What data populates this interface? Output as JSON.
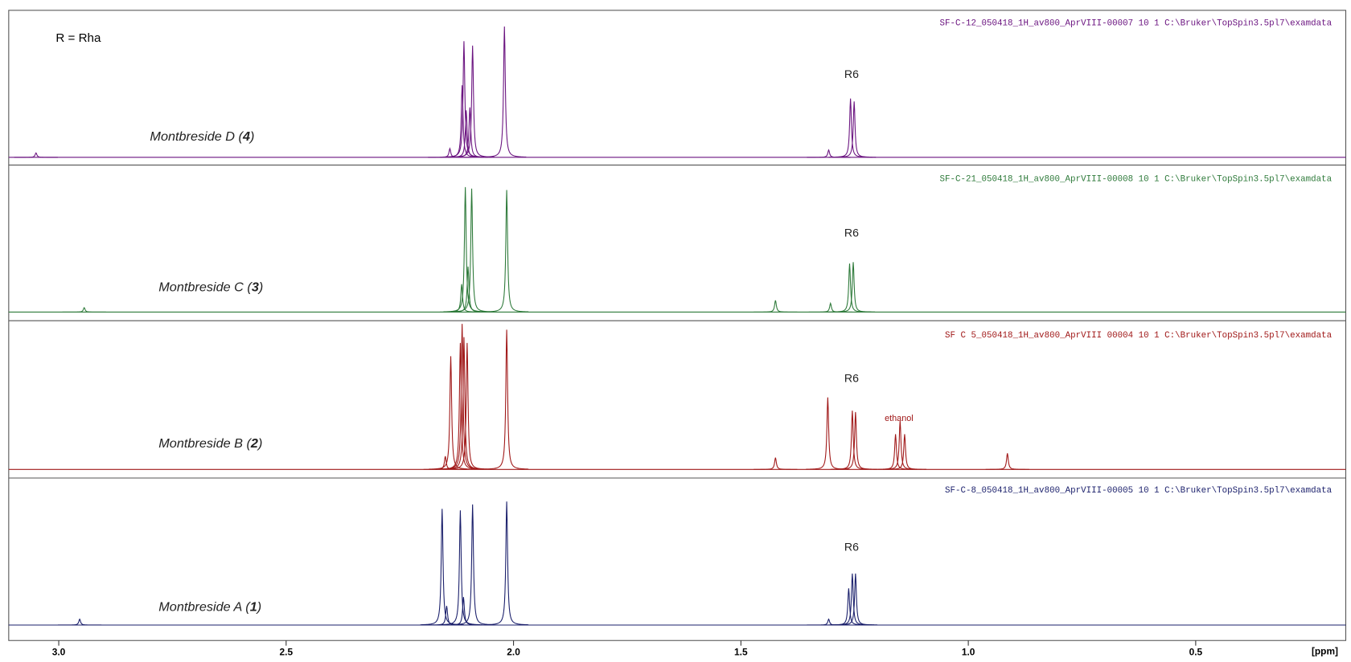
{
  "chart_data": {
    "type": "spectrum",
    "xlabel": "[ppm]",
    "note": "R = Rha",
    "xlim": [
      3.11,
      0.17
    ],
    "xticks": [
      {
        "value": 3,
        "label": "3.0"
      },
      2.5,
      {
        "value": 2,
        "label": "2.0"
      },
      1.5,
      {
        "value": 1,
        "label": "1.0"
      },
      0.5
    ],
    "ylim": [
      0,
      100
    ],
    "series": [
      {
        "name_parts": [
          "Montbreside D (",
          "4",
          ")"
        ],
        "file": "SF-C-12_050418_1H_av800_AprVIII-00007  10  1  C:\\Bruker\\TopSpin3.5pl7\\examdata",
        "color": "#6b1480",
        "annotations": [
          "R6"
        ],
        "ppm": [
          3.05,
          2.14,
          2.113,
          2.109,
          2.104,
          2.096,
          2.09,
          2.02,
          1.307,
          1.259,
          1.251
        ],
        "heights": [
          3,
          6,
          49,
          79,
          32,
          34,
          76,
          89,
          5,
          40,
          38
        ]
      },
      {
        "name_parts": [
          "Montbreside C (",
          "3",
          ")"
        ],
        "file": "SF-C-21_050418_1H_av800_AprVIII-00008  10  1  C:\\Bruker\\TopSpin3.5pl7\\examdata",
        "color": "#2e7a3a",
        "annotations": [
          "R6"
        ],
        "ppm": [
          2.944,
          2.114,
          2.106,
          2.1,
          2.092,
          2.015,
          1.424,
          1.303,
          1.261,
          1.253
        ],
        "heights": [
          3,
          19,
          85,
          31,
          84,
          83,
          8,
          6,
          33,
          34
        ]
      },
      {
        "name_parts": [
          "Montbreside B (",
          "2",
          ")"
        ],
        "file": "SF C 5_050418_1H_av800_AprVIII 00004  10  1  C:\\Bruker\\TopSpin3.5pl7\\examdata",
        "color": "#a01818",
        "annotations": [
          "R6",
          "ethanol"
        ],
        "ppm": [
          2.15,
          2.138,
          2.117,
          2.113,
          2.109,
          2.102,
          2.015,
          1.424,
          1.309,
          1.255,
          1.248,
          1.16,
          1.15,
          1.14,
          0.914
        ],
        "heights": [
          9,
          77,
          86,
          99,
          90,
          86,
          95,
          8,
          49,
          40,
          39,
          24,
          33,
          24,
          11
        ]
      },
      {
        "name_parts": [
          "Montbreside A (",
          "1",
          ")"
        ],
        "file": "SF-C-8_050418_1H_av800_AprVIII-00005  10  1  C:\\Bruker\\TopSpin3.5pl7\\examdata",
        "color": "#1a1f6b",
        "annotations": [
          "R6"
        ],
        "ppm": [
          2.954,
          2.157,
          2.147,
          2.117,
          2.11,
          2.09,
          2.015,
          1.307,
          1.263,
          1.255,
          1.248
        ],
        "heights": [
          4,
          79,
          13,
          78,
          19,
          82,
          84,
          4,
          25,
          35,
          35
        ]
      }
    ]
  }
}
